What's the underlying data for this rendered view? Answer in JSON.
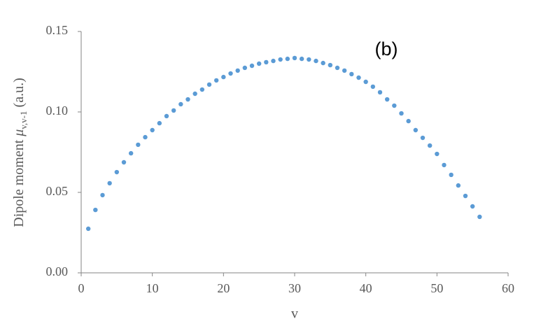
{
  "chart_data": {
    "type": "scatter",
    "annotation": "(b)",
    "xlabel": "v",
    "ylabel": [
      "Dipole moment ",
      "μ",
      "v,v-1",
      " (a.u.)"
    ],
    "color": "#5b9bd5",
    "x": [
      1,
      2,
      3,
      4,
      5,
      6,
      7,
      8,
      9,
      10,
      11,
      12,
      13,
      14,
      15,
      16,
      17,
      18,
      19,
      20,
      21,
      22,
      23,
      24,
      25,
      26,
      27,
      28,
      29,
      30,
      31,
      32,
      33,
      34,
      35,
      36,
      37,
      38,
      39,
      40,
      41,
      42,
      43,
      44,
      45,
      46,
      47,
      48,
      49,
      50,
      51,
      52,
      53,
      54,
      55,
      56
    ],
    "values": [
      0.0274,
      0.0391,
      0.0483,
      0.0557,
      0.0626,
      0.0687,
      0.0743,
      0.0796,
      0.0843,
      0.0887,
      0.093,
      0.0974,
      0.1009,
      0.1048,
      0.1078,
      0.1113,
      0.1139,
      0.117,
      0.1196,
      0.1217,
      0.1239,
      0.1257,
      0.1274,
      0.1287,
      0.13,
      0.1309,
      0.1317,
      0.1326,
      0.133,
      0.1335,
      0.133,
      0.1326,
      0.1317,
      0.1304,
      0.1291,
      0.1274,
      0.1257,
      0.1235,
      0.1213,
      0.1187,
      0.1157,
      0.1122,
      0.1078,
      0.1039,
      0.0991,
      0.0943,
      0.0887,
      0.0839,
      0.0791,
      0.0739,
      0.067,
      0.0609,
      0.0543,
      0.0478,
      0.0413,
      0.0348
    ],
    "xlim": [
      0,
      60
    ],
    "xticks": [
      0,
      10,
      20,
      30,
      40,
      50,
      60
    ],
    "ylim": [
      0,
      0.15
    ],
    "yticks": [
      {
        "value": 0,
        "label": "0.00"
      },
      {
        "value": 0.05,
        "label": "0.05"
      },
      {
        "value": 0.1,
        "label": "0.10"
      },
      {
        "value": 0.15,
        "label": "0.15"
      }
    ],
    "grid": false
  }
}
